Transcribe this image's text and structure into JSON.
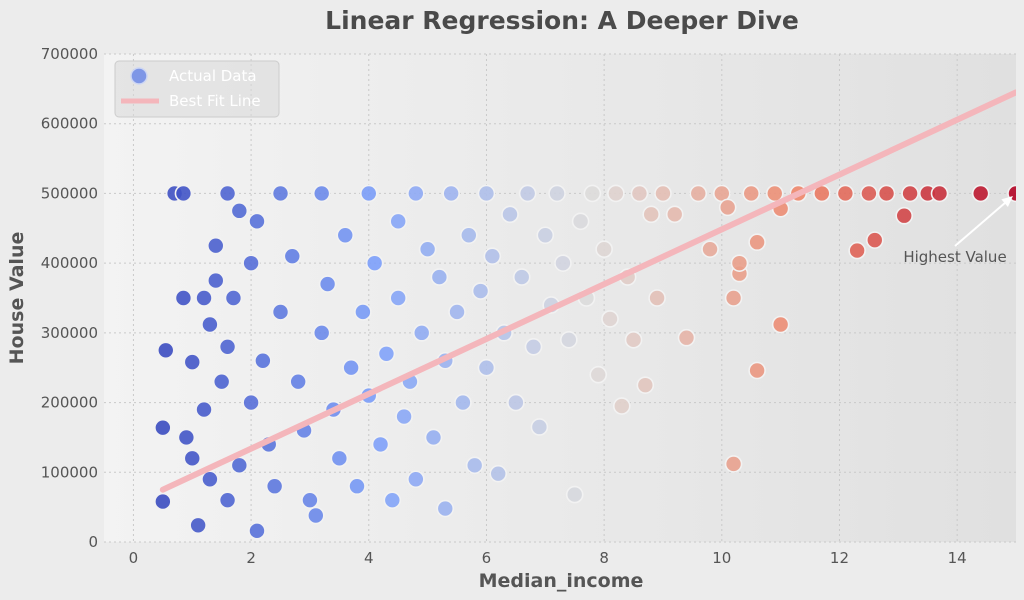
{
  "chart_data": {
    "type": "scatter",
    "title": "Linear Regression: A Deeper Dive",
    "xlabel": "Median_income",
    "ylabel": "House Value",
    "xlim": [
      -0.5,
      15
    ],
    "ylim": [
      0,
      700000
    ],
    "xticks": [
      "0",
      "2",
      "4",
      "6",
      "8",
      "10",
      "12",
      "14"
    ],
    "xtick_values": [
      0,
      2,
      4,
      6,
      8,
      10,
      12,
      14
    ],
    "yticks": [
      "0",
      "100000",
      "200000",
      "300000",
      "400000",
      "500000",
      "600000",
      "700000"
    ],
    "ytick_values": [
      0,
      100000,
      200000,
      300000,
      400000,
      500000,
      600000,
      700000
    ],
    "grid": true,
    "legend": {
      "placement": "top-left",
      "entries": [
        {
          "label": "Actual Data",
          "marker": "circle"
        },
        {
          "label": "Best Fit Line",
          "marker": "line"
        }
      ]
    },
    "colors": {
      "low": "#3d4fc2",
      "mid": "#dcdcdc",
      "high": "#b40426",
      "fit_line": "#f4b6bb",
      "background": "#ececec"
    },
    "colormap": "coolwarm",
    "series": [
      {
        "name": "Actual Data",
        "points": [
          [
            0.5,
            58000
          ],
          [
            0.5,
            164000
          ],
          [
            0.55,
            275000
          ],
          [
            0.7,
            500000
          ],
          [
            0.85,
            500000
          ],
          [
            0.85,
            350000
          ],
          [
            1.0,
            258000
          ],
          [
            1.1,
            24000
          ],
          [
            1.2,
            350000
          ],
          [
            1.3,
            312000
          ],
          [
            1.4,
            375000
          ],
          [
            1.4,
            425000
          ],
          [
            1.6,
            500000
          ],
          [
            1.7,
            350000
          ],
          [
            1.8,
            475000
          ],
          [
            1.6,
            280000
          ],
          [
            1.5,
            230000
          ],
          [
            1.2,
            190000
          ],
          [
            0.9,
            150000
          ],
          [
            1.0,
            120000
          ],
          [
            1.3,
            90000
          ],
          [
            1.6,
            60000
          ],
          [
            1.8,
            110000
          ],
          [
            2.0,
            400000
          ],
          [
            2.1,
            460000
          ],
          [
            2.0,
            200000
          ],
          [
            2.1,
            16000
          ],
          [
            2.2,
            260000
          ],
          [
            2.3,
            140000
          ],
          [
            2.4,
            80000
          ],
          [
            2.5,
            500000
          ],
          [
            2.5,
            330000
          ],
          [
            2.7,
            410000
          ],
          [
            2.8,
            230000
          ],
          [
            2.9,
            160000
          ],
          [
            3.0,
            60000
          ],
          [
            3.1,
            38000
          ],
          [
            3.2,
            300000
          ],
          [
            3.2,
            500000
          ],
          [
            3.3,
            370000
          ],
          [
            3.4,
            190000
          ],
          [
            3.5,
            120000
          ],
          [
            3.6,
            440000
          ],
          [
            3.7,
            250000
          ],
          [
            3.8,
            80000
          ],
          [
            3.9,
            330000
          ],
          [
            4.0,
            500000
          ],
          [
            4.0,
            210000
          ],
          [
            4.1,
            400000
          ],
          [
            4.2,
            140000
          ],
          [
            4.3,
            270000
          ],
          [
            4.4,
            60000
          ],
          [
            4.5,
            460000
          ],
          [
            4.5,
            350000
          ],
          [
            4.6,
            180000
          ],
          [
            4.7,
            230000
          ],
          [
            4.8,
            500000
          ],
          [
            4.8,
            90000
          ],
          [
            4.9,
            300000
          ],
          [
            5.0,
            420000
          ],
          [
            5.1,
            150000
          ],
          [
            5.2,
            380000
          ],
          [
            5.3,
            48000
          ],
          [
            5.3,
            260000
          ],
          [
            5.4,
            500000
          ],
          [
            5.5,
            330000
          ],
          [
            5.6,
            200000
          ],
          [
            5.7,
            440000
          ],
          [
            5.8,
            110000
          ],
          [
            5.9,
            360000
          ],
          [
            6.0,
            500000
          ],
          [
            6.0,
            250000
          ],
          [
            6.1,
            410000
          ],
          [
            6.2,
            98000
          ],
          [
            6.3,
            300000
          ],
          [
            6.4,
            470000
          ],
          [
            6.5,
            200000
          ],
          [
            6.6,
            380000
          ],
          [
            6.7,
            500000
          ],
          [
            6.8,
            280000
          ],
          [
            6.9,
            165000
          ],
          [
            7.0,
            440000
          ],
          [
            7.1,
            340000
          ],
          [
            7.2,
            500000
          ],
          [
            7.3,
            400000
          ],
          [
            7.4,
            290000
          ],
          [
            7.5,
            68000
          ],
          [
            7.6,
            460000
          ],
          [
            7.7,
            350000
          ],
          [
            7.8,
            500000
          ],
          [
            7.9,
            240000
          ],
          [
            8.0,
            420000
          ],
          [
            8.1,
            320000
          ],
          [
            8.2,
            500000
          ],
          [
            8.3,
            195000
          ],
          [
            8.4,
            380000
          ],
          [
            8.5,
            290000
          ],
          [
            8.6,
            500000
          ],
          [
            8.7,
            225000
          ],
          [
            8.8,
            470000
          ],
          [
            8.9,
            350000
          ],
          [
            9.0,
            500000
          ],
          [
            9.2,
            470000
          ],
          [
            9.4,
            293000
          ],
          [
            9.6,
            500000
          ],
          [
            9.8,
            420000
          ],
          [
            10.0,
            500000
          ],
          [
            10.1,
            480000
          ],
          [
            10.2,
            112000
          ],
          [
            10.2,
            350000
          ],
          [
            10.3,
            385000
          ],
          [
            10.3,
            400000
          ],
          [
            10.5,
            500000
          ],
          [
            10.6,
            430000
          ],
          [
            10.6,
            246000
          ],
          [
            10.9,
            500000
          ],
          [
            11.0,
            312000
          ],
          [
            11.0,
            478000
          ],
          [
            11.3,
            500000
          ],
          [
            11.7,
            500000
          ],
          [
            12.1,
            500000
          ],
          [
            12.3,
            418000
          ],
          [
            12.5,
            500000
          ],
          [
            12.6,
            433000
          ],
          [
            12.8,
            500000
          ],
          [
            13.1,
            468000
          ],
          [
            13.2,
            500000
          ],
          [
            13.5,
            500000
          ],
          [
            13.7,
            500000
          ],
          [
            14.4,
            500000
          ],
          [
            15.0,
            500000
          ]
        ]
      }
    ],
    "fit_line": {
      "name": "Best Fit Line",
      "x": [
        0.5,
        15.0
      ],
      "y": [
        75000,
        645000
      ]
    },
    "annotation": {
      "text": "Highest Value",
      "point": [
        15.0,
        500000
      ]
    }
  }
}
